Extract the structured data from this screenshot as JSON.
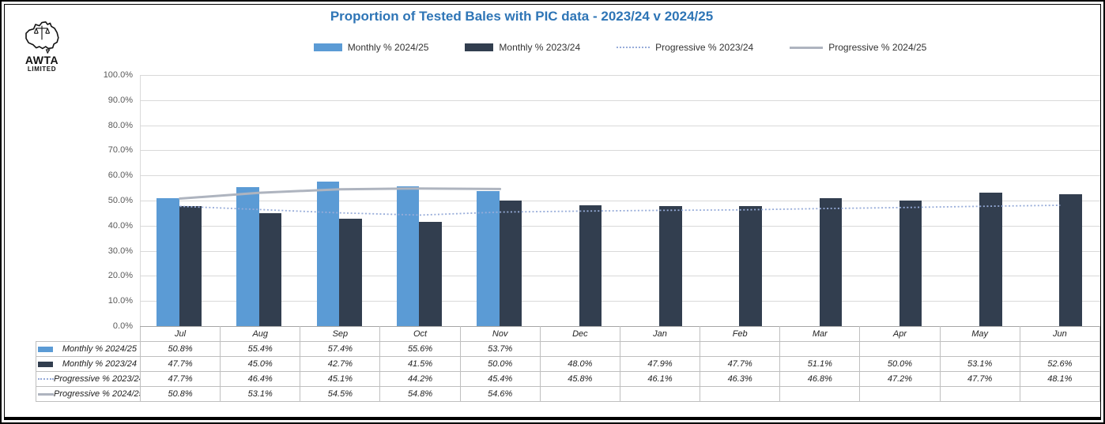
{
  "logo": {
    "name": "AWTA",
    "line2": "LIMITED"
  },
  "header": {
    "title": "Proportion of Tested Bales with PIC data - 2023/24 v 2024/25"
  },
  "colors": {
    "title": "#2E75B6",
    "gridline": "#D9D9D9",
    "table_border": "#BFBFBF",
    "axis_text": "#595959",
    "text": "#1F1F1F",
    "frame": "#000000",
    "background": "#FFFFFF"
  },
  "chart_data": {
    "type": "bar",
    "title": "Proportion of Tested Bales with PIC data - 2023/24 v 2024/25",
    "xlabel": "",
    "ylabel": "",
    "ylim": [
      0,
      100
    ],
    "y_tick_step": 10,
    "y_ticks": [
      "0.0%",
      "10.0%",
      "20.0%",
      "30.0%",
      "40.0%",
      "50.0%",
      "60.0%",
      "70.0%",
      "80.0%",
      "90.0%",
      "100.0%"
    ],
    "grid": true,
    "legend_position": "top",
    "categories": [
      "Jul",
      "Aug",
      "Sep",
      "Oct",
      "Nov",
      "Dec",
      "Jan",
      "Feb",
      "Mar",
      "Apr",
      "May",
      "Jun"
    ],
    "series": [
      {
        "name": "Monthly % 2024/25",
        "type": "bar",
        "color": "#5B9BD5",
        "values": [
          50.8,
          55.4,
          57.4,
          55.6,
          53.7,
          null,
          null,
          null,
          null,
          null,
          null,
          null
        ]
      },
      {
        "name": "Monthly % 2023/24",
        "type": "bar",
        "color": "#323E4F",
        "values": [
          47.7,
          45.0,
          42.7,
          41.5,
          50.0,
          48.0,
          47.9,
          47.7,
          51.1,
          50.0,
          53.1,
          52.6
        ]
      },
      {
        "name": "Progressive % 2023/24",
        "type": "line-dotted",
        "color": "#97ACD9",
        "values": [
          47.7,
          46.4,
          45.1,
          44.2,
          45.4,
          45.8,
          46.1,
          46.3,
          46.8,
          47.2,
          47.7,
          48.1
        ]
      },
      {
        "name": "Progressive % 2024/25",
        "type": "line-solid",
        "color": "#AEB4BF",
        "values": [
          50.8,
          53.1,
          54.5,
          54.8,
          54.6,
          null,
          null,
          null,
          null,
          null,
          null,
          null
        ]
      }
    ]
  }
}
